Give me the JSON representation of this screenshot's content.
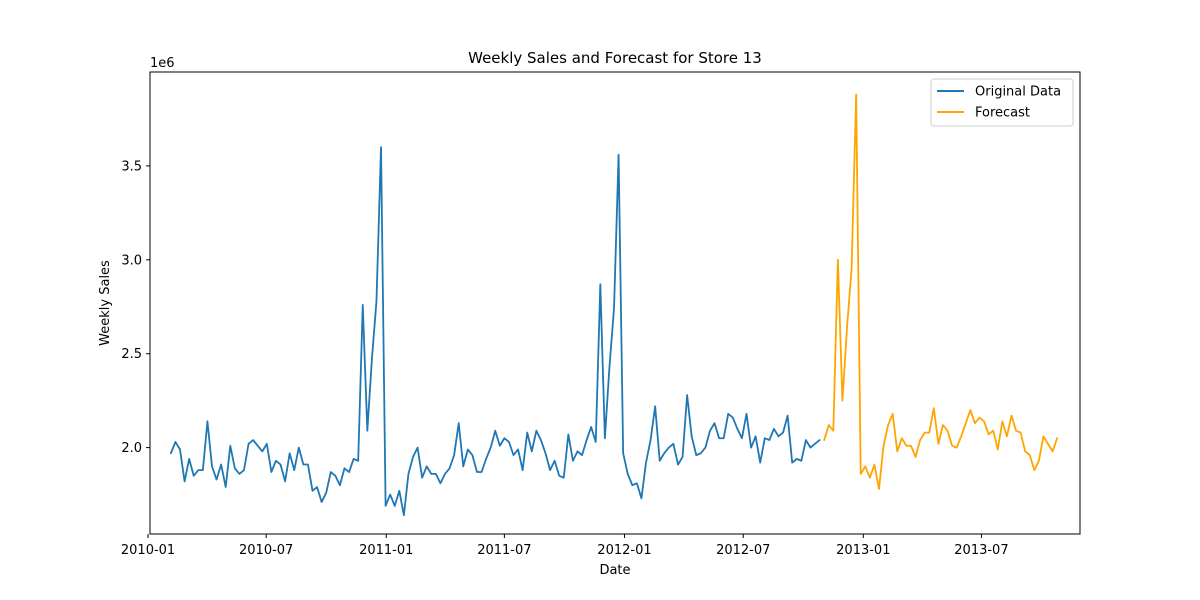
{
  "chart_data": {
    "type": "line",
    "title": "Weekly Sales and Forecast for Store 13",
    "xlabel": "Date",
    "ylabel": "Weekly Sales",
    "y_offset_text": "1e6",
    "y_scale_factor": 1000000,
    "xlim": [
      "2010-01-04",
      "2013-11-29"
    ],
    "ylim": [
      1540000,
      4000000
    ],
    "grid": false,
    "legend_position": "top-right",
    "x_ticks": [
      {
        "date": "2010-01-01",
        "label": "2010-01"
      },
      {
        "date": "2010-07-01",
        "label": "2010-07"
      },
      {
        "date": "2011-01-01",
        "label": "2011-01"
      },
      {
        "date": "2011-07-01",
        "label": "2011-07"
      },
      {
        "date": "2012-01-01",
        "label": "2012-01"
      },
      {
        "date": "2012-07-01",
        "label": "2012-07"
      },
      {
        "date": "2013-01-01",
        "label": "2013-01"
      },
      {
        "date": "2013-07-01",
        "label": "2013-07"
      }
    ],
    "y_ticks": [
      {
        "value": 2000000,
        "label": "2.0"
      },
      {
        "value": 2500000,
        "label": "2.5"
      },
      {
        "value": 3000000,
        "label": "3.0"
      },
      {
        "value": 3500000,
        "label": "3.5"
      }
    ],
    "series": [
      {
        "name": "Original Data",
        "color": "#1f77b4",
        "start": "2010-02-05",
        "interval_days": 7,
        "values": [
          1970000,
          2030000,
          1990000,
          1820000,
          1940000,
          1850000,
          1880000,
          1880000,
          2140000,
          1900000,
          1830000,
          1910000,
          1790000,
          2010000,
          1890000,
          1860000,
          1880000,
          2020000,
          2040000,
          2010000,
          1980000,
          2020000,
          1870000,
          1930000,
          1910000,
          1820000,
          1970000,
          1880000,
          2000000,
          1910000,
          1910000,
          1770000,
          1790000,
          1710000,
          1760000,
          1870000,
          1850000,
          1800000,
          1890000,
          1870000,
          1940000,
          1930000,
          2760000,
          2090000,
          2470000,
          2780000,
          3600000,
          1690000,
          1750000,
          1690000,
          1770000,
          1640000,
          1860000,
          1950000,
          2000000,
          1840000,
          1900000,
          1860000,
          1860000,
          1810000,
          1860000,
          1890000,
          1960000,
          2130000,
          1900000,
          1990000,
          1960000,
          1870000,
          1870000,
          1940000,
          2000000,
          2090000,
          2010000,
          2050000,
          2030000,
          1960000,
          1990000,
          1880000,
          2080000,
          1980000,
          2090000,
          2040000,
          1970000,
          1880000,
          1930000,
          1850000,
          1840000,
          2070000,
          1930000,
          1980000,
          1960000,
          2040000,
          2110000,
          2030000,
          2870000,
          2050000,
          2430000,
          2740000,
          3560000,
          1970000,
          1860000,
          1800000,
          1810000,
          1730000,
          1920000,
          2040000,
          2220000,
          1930000,
          1970000,
          2000000,
          2020000,
          1910000,
          1950000,
          2280000,
          2060000,
          1960000,
          1970000,
          2000000,
          2090000,
          2130000,
          2050000,
          2050000,
          2180000,
          2160000,
          2100000,
          2050000,
          2180000,
          2000000,
          2060000,
          1920000,
          2050000,
          2040000,
          2100000,
          2060000,
          2080000,
          2170000,
          1920000,
          1940000,
          1930000,
          2040000,
          2000000,
          2020000,
          2040000
        ]
      },
      {
        "name": "Forecast",
        "color": "#ffa500",
        "start": "2012-11-02",
        "interval_days": 7,
        "values": [
          2040000,
          2120000,
          2090000,
          3000000,
          2250000,
          2640000,
          2950000,
          3880000,
          1860000,
          1900000,
          1840000,
          1910000,
          1780000,
          2010000,
          2120000,
          2180000,
          1980000,
          2050000,
          2010000,
          2010000,
          1950000,
          2040000,
          2080000,
          2080000,
          2210000,
          2020000,
          2120000,
          2090000,
          2010000,
          2000000,
          2060000,
          2130000,
          2200000,
          2130000,
          2160000,
          2140000,
          2070000,
          2090000,
          1990000,
          2140000,
          2060000,
          2170000,
          2090000,
          2080000,
          1980000,
          1960000,
          1880000,
          1930000,
          2060000,
          2020000,
          1980000,
          2050000
        ]
      }
    ]
  }
}
